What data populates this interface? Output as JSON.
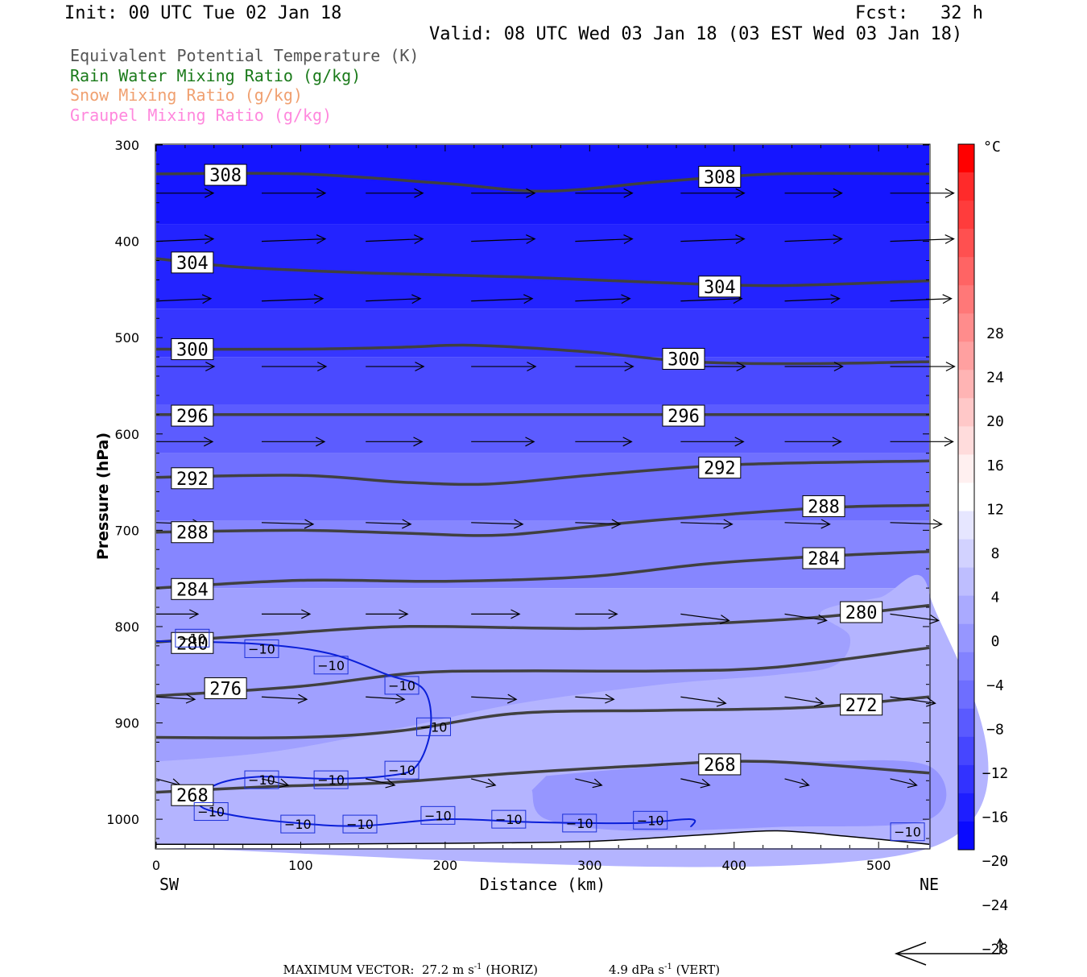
{
  "header": {
    "init": "Init: 00 UTC Tue 02 Jan 18",
    "fcst": "Fcst:   32 h",
    "valid": "Valid: 08 UTC Wed 03 Jan 18 (03 EST Wed 03 Jan 18)"
  },
  "legend": [
    {
      "label": "Equivalent Potential Temperature (K)",
      "color": "#555555"
    },
    {
      "label": "Rain Water Mixing Ratio (g/kg)",
      "color": "#1a7a1a"
    },
    {
      "label": "Snow Mixing Ratio (g/kg)",
      "color": "#f0a070"
    },
    {
      "label": "Graupel Mixing Ratio (g/kg)",
      "color": "#ff88dd"
    }
  ],
  "chart_data": {
    "type": "cross-section",
    "xlabel": "Distance (km)",
    "ylabel": "Pressure (hPa)",
    "x_ticks": [
      0,
      100,
      200,
      300,
      400,
      500
    ],
    "y_ticks": [
      300,
      400,
      500,
      600,
      700,
      800,
      900,
      1000
    ],
    "xlim": [
      0,
      535
    ],
    "ylim": [
      1030,
      300
    ],
    "left_end_label": "SW",
    "right_end_label": "NE",
    "colorbar": {
      "unit": "°C",
      "labels": [
        "28",
        "24",
        "20",
        "16",
        "12",
        "8",
        "4",
        "0",
        "−4",
        "−8",
        "−12",
        "−16",
        "−20",
        "−24",
        "−28"
      ],
      "colors": [
        "#ff0000",
        "#ff2a2a",
        "#ff3c3c",
        "#ff5050",
        "#ff6464",
        "#ff7878",
        "#ff8c8c",
        "#ffa0a0",
        "#ffb4b4",
        "#ffc8c8",
        "#ffdcdc",
        "#fff0f0",
        "#ffffff",
        "#e6e6ff",
        "#d2d2ff",
        "#bebeff",
        "#aaaaff",
        "#9696ff",
        "#8282ff",
        "#6e6eff",
        "#5a5aff",
        "#4646ff",
        "#3232ff",
        "#1e1eff",
        "#0a0aff"
      ]
    },
    "theta_e_contours": [
      {
        "label": "308",
        "points": [
          [
            0,
            330
          ],
          [
            100,
            330
          ],
          [
            200,
            340
          ],
          [
            270,
            348
          ],
          [
            350,
            338
          ],
          [
            430,
            330
          ],
          [
            535,
            330
          ]
        ],
        "label_positions": [
          [
            48,
            331
          ],
          [
            390,
            333
          ]
        ]
      },
      {
        "label": "304",
        "points": [
          [
            0,
            418
          ],
          [
            60,
            427
          ],
          [
            150,
            433
          ],
          [
            250,
            437
          ],
          [
            350,
            443
          ],
          [
            430,
            446
          ],
          [
            535,
            441
          ]
        ],
        "label_positions": [
          [
            25,
            422
          ],
          [
            390,
            447
          ]
        ]
      },
      {
        "label": "300",
        "points": [
          [
            0,
            512
          ],
          [
            100,
            512
          ],
          [
            170,
            510
          ],
          [
            220,
            508
          ],
          [
            300,
            515
          ],
          [
            370,
            525
          ],
          [
            450,
            527
          ],
          [
            535,
            525
          ]
        ],
        "label_positions": [
          [
            25,
            512
          ],
          [
            365,
            522
          ]
        ]
      },
      {
        "label": "296",
        "points": [
          [
            0,
            580
          ],
          [
            535,
            580
          ]
        ],
        "label_positions": [
          [
            25,
            581
          ],
          [
            365,
            581
          ]
        ]
      },
      {
        "label": "292",
        "points": [
          [
            0,
            645
          ],
          [
            100,
            643
          ],
          [
            170,
            650
          ],
          [
            230,
            652
          ],
          [
            300,
            643
          ],
          [
            400,
            632
          ],
          [
            535,
            628
          ]
        ],
        "label_positions": [
          [
            25,
            646
          ],
          [
            390,
            635
          ]
        ]
      },
      {
        "label": "288",
        "points": [
          [
            0,
            702
          ],
          [
            100,
            700
          ],
          [
            170,
            703
          ],
          [
            240,
            705
          ],
          [
            320,
            693
          ],
          [
            400,
            683
          ],
          [
            470,
            676
          ],
          [
            535,
            674
          ]
        ],
        "label_positions": [
          [
            25,
            702
          ],
          [
            462,
            675
          ]
        ]
      },
      {
        "label": "284",
        "points": [
          [
            0,
            760
          ],
          [
            100,
            752
          ],
          [
            200,
            753
          ],
          [
            300,
            748
          ],
          [
            380,
            735
          ],
          [
            460,
            727
          ],
          [
            535,
            722
          ]
        ],
        "label_positions": [
          [
            25,
            761
          ],
          [
            462,
            729
          ]
        ]
      },
      {
        "label": "280",
        "points": [
          [
            0,
            816
          ],
          [
            80,
            808
          ],
          [
            150,
            801
          ],
          [
            200,
            800
          ],
          [
            300,
            802
          ],
          [
            380,
            797
          ],
          [
            460,
            790
          ],
          [
            535,
            778
          ]
        ],
        "label_positions": [
          [
            25,
            817
          ],
          [
            488,
            785
          ]
        ]
      },
      {
        "label": "276",
        "points": [
          [
            0,
            872
          ],
          [
            100,
            862
          ],
          [
            180,
            848
          ],
          [
            250,
            846
          ],
          [
            350,
            846
          ],
          [
            430,
            842
          ],
          [
            535,
            822
          ]
        ],
        "label_positions": [
          [
            48,
            864
          ]
        ]
      },
      {
        "label": "272",
        "points": [
          [
            0,
            915
          ],
          [
            100,
            915
          ],
          [
            170,
            908
          ],
          [
            250,
            890
          ],
          [
            350,
            887
          ],
          [
            450,
            884
          ],
          [
            535,
            873
          ]
        ],
        "label_positions": [
          [
            488,
            881
          ]
        ]
      },
      {
        "label": "268",
        "points": [
          [
            0,
            972
          ],
          [
            80,
            966
          ],
          [
            160,
            962
          ],
          [
            250,
            952
          ],
          [
            330,
            945
          ],
          [
            420,
            940
          ],
          [
            535,
            952
          ]
        ],
        "label_positions": [
          [
            25,
            975
          ],
          [
            390,
            943
          ]
        ]
      },
      {
        "label": "−10",
        "points": [
          [
            0,
            815
          ],
          [
            70,
            818
          ],
          [
            120,
            828
          ],
          [
            160,
            850
          ],
          [
            185,
            865
          ],
          [
            190,
            905
          ],
          [
            180,
            945
          ],
          [
            160,
            955
          ],
          [
            120,
            958
          ],
          [
            70,
            956
          ],
          [
            40,
            965
          ],
          [
            30,
            985
          ],
          [
            50,
            995
          ],
          [
            90,
            1003
          ],
          [
            140,
            1007
          ],
          [
            200,
            1000
          ],
          [
            260,
            1003
          ],
          [
            330,
            1004
          ],
          [
            370,
            1000
          ],
          [
            370,
            1008
          ]
        ],
        "label_positions": [
          [
            25,
            812
          ],
          [
            73,
            823
          ],
          [
            121,
            840
          ],
          [
            170,
            861
          ],
          [
            192,
            904
          ],
          [
            170,
            949
          ],
          [
            73,
            959
          ],
          [
            121,
            959
          ],
          [
            38,
            992
          ],
          [
            98,
            1005
          ],
          [
            141,
            1005
          ],
          [
            195,
            996
          ],
          [
            244,
            1000
          ],
          [
            293,
            1004
          ],
          [
            342,
            1001
          ],
          [
            520,
            1013
          ]
        ]
      }
    ],
    "wind_arrows": "rows at 350, 400, 462, 530, 608, 692, 787, 873 and 958 hPa, westerly; lowest row nearly flat",
    "surface_line": {
      "points": [
        [
          0,
          1026
        ],
        [
          100,
          1026
        ],
        [
          200,
          1025
        ],
        [
          300,
          1023
        ],
        [
          380,
          1016
        ],
        [
          430,
          1012
        ],
        [
          480,
          1018
        ],
        [
          535,
          1026
        ]
      ]
    }
  },
  "footer": {
    "max_vector_label": "MAXIMUM VECTOR:",
    "horiz_value": "27.2 m s",
    "horiz_exp": "-1",
    "horiz_suffix": " (HORIZ)",
    "vert_value": "4.9 dPa s",
    "vert_exp": "-1",
    "vert_suffix": " (VERT)"
  }
}
